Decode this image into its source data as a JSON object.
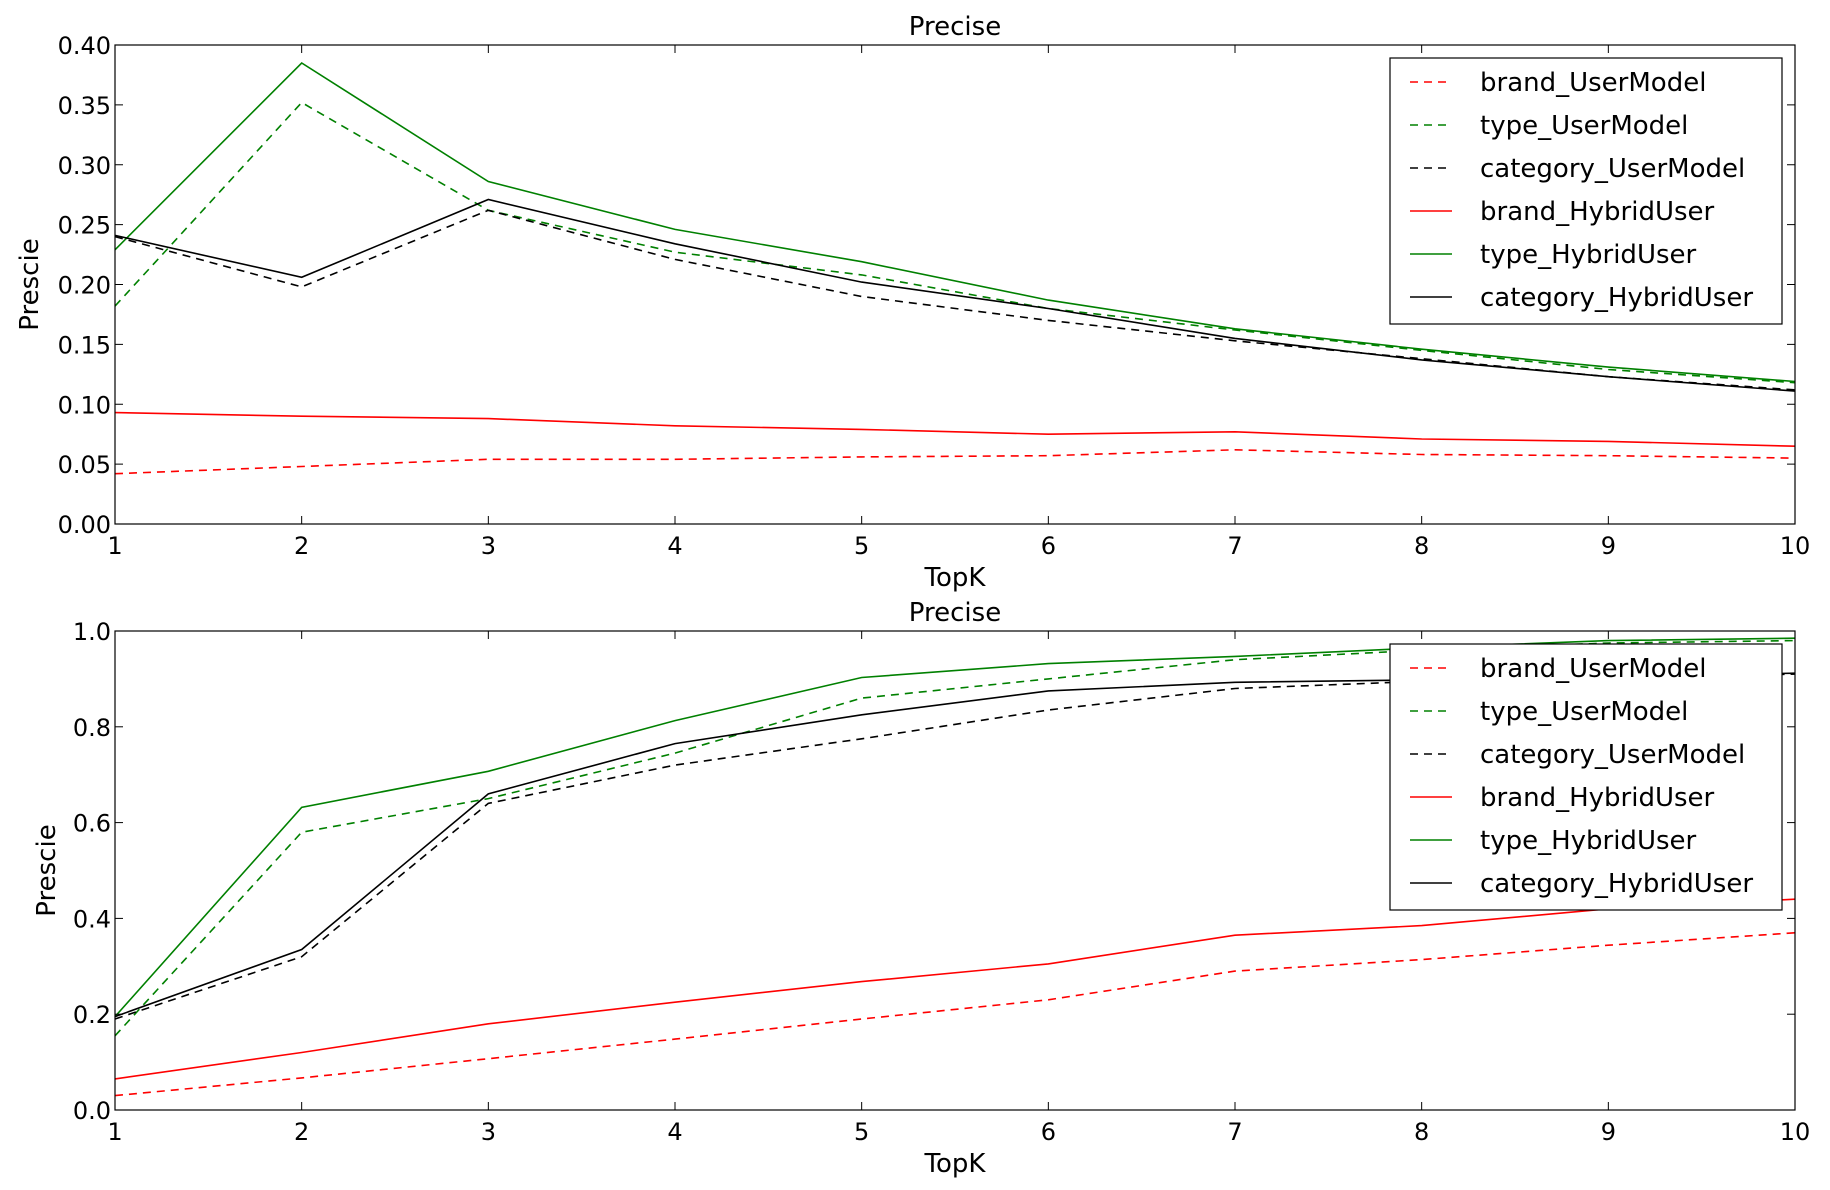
{
  "chart_data": [
    {
      "type": "line",
      "title": "Precise",
      "xlabel": "TopK",
      "ylabel": "Prescie",
      "x": [
        1,
        2,
        3,
        4,
        5,
        6,
        7,
        8,
        9,
        10
      ],
      "xlim": [
        1,
        10
      ],
      "ylim": [
        0,
        0.4
      ],
      "yticks": [
        "0.00",
        "0.05",
        "0.10",
        "0.15",
        "0.20",
        "0.25",
        "0.30",
        "0.35",
        "0.40"
      ],
      "xticks": [
        "1",
        "2",
        "3",
        "4",
        "5",
        "6",
        "7",
        "8",
        "9",
        "10"
      ],
      "legend_position": "top-right",
      "grid": false,
      "series": [
        {
          "name": "brand_UserModel",
          "color": "#ff0000",
          "dash": "dashed",
          "values": [
            0.042,
            0.048,
            0.054,
            0.054,
            0.056,
            0.057,
            0.062,
            0.058,
            0.057,
            0.055
          ]
        },
        {
          "name": "type_UserModel",
          "color": "#008000",
          "dash": "dashed",
          "values": [
            0.182,
            0.352,
            0.262,
            0.227,
            0.208,
            0.18,
            0.162,
            0.145,
            0.129,
            0.118
          ]
        },
        {
          "name": "category_UserModel",
          "color": "#000000",
          "dash": "dashed",
          "values": [
            0.24,
            0.198,
            0.262,
            0.221,
            0.19,
            0.17,
            0.153,
            0.138,
            0.123,
            0.112
          ]
        },
        {
          "name": "brand_HybridUser",
          "color": "#ff0000",
          "dash": "solid",
          "values": [
            0.093,
            0.09,
            0.088,
            0.082,
            0.079,
            0.075,
            0.077,
            0.071,
            0.069,
            0.065
          ]
        },
        {
          "name": "type_HybridUser",
          "color": "#008000",
          "dash": "solid",
          "values": [
            0.229,
            0.385,
            0.286,
            0.246,
            0.219,
            0.187,
            0.163,
            0.146,
            0.131,
            0.119
          ]
        },
        {
          "name": "category_HybridUser",
          "color": "#000000",
          "dash": "solid",
          "values": [
            0.241,
            0.206,
            0.271,
            0.234,
            0.202,
            0.18,
            0.155,
            0.137,
            0.123,
            0.111
          ]
        }
      ]
    },
    {
      "type": "line",
      "title": "Precise",
      "xlabel": "TopK",
      "ylabel": "Prescie",
      "x": [
        1,
        2,
        3,
        4,
        5,
        6,
        7,
        8,
        9,
        10
      ],
      "xlim": [
        1,
        10
      ],
      "ylim": [
        0,
        1.0
      ],
      "yticks": [
        "0.0",
        "0.2",
        "0.4",
        "0.6",
        "0.8",
        "1.0"
      ],
      "xticks": [
        "1",
        "2",
        "3",
        "4",
        "5",
        "6",
        "7",
        "8",
        "9",
        "10"
      ],
      "legend_position": "top-right",
      "grid": false,
      "series": [
        {
          "name": "brand_UserModel",
          "color": "#ff0000",
          "dash": "dashed",
          "values": [
            0.03,
            0.067,
            0.107,
            0.148,
            0.19,
            0.23,
            0.29,
            0.314,
            0.344,
            0.37
          ]
        },
        {
          "name": "type_UserModel",
          "color": "#008000",
          "dash": "dashed",
          "values": [
            0.155,
            0.58,
            0.65,
            0.745,
            0.86,
            0.9,
            0.94,
            0.96,
            0.975,
            0.98
          ]
        },
        {
          "name": "category_UserModel",
          "color": "#000000",
          "dash": "dashed",
          "values": [
            0.19,
            0.32,
            0.64,
            0.72,
            0.775,
            0.835,
            0.88,
            0.895,
            0.9,
            0.91
          ]
        },
        {
          "name": "brand_HybridUser",
          "color": "#ff0000",
          "dash": "solid",
          "values": [
            0.065,
            0.12,
            0.18,
            0.225,
            0.268,
            0.305,
            0.365,
            0.385,
            0.42,
            0.44
          ]
        },
        {
          "name": "type_HybridUser",
          "color": "#008000",
          "dash": "solid",
          "values": [
            0.195,
            0.632,
            0.707,
            0.813,
            0.903,
            0.932,
            0.947,
            0.965,
            0.98,
            0.985
          ]
        },
        {
          "name": "category_HybridUser",
          "color": "#000000",
          "dash": "solid",
          "values": [
            0.195,
            0.335,
            0.66,
            0.765,
            0.825,
            0.875,
            0.893,
            0.898,
            0.905,
            0.912
          ]
        }
      ]
    }
  ]
}
